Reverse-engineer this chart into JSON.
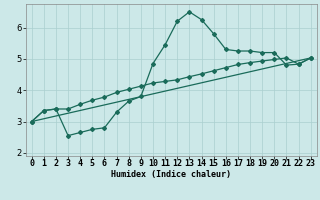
{
  "xlabel": "Humidex (Indice chaleur)",
  "bg_color": "#cce8e8",
  "grid_color": "#aacfcf",
  "line_color": "#1a6b5a",
  "xlim": [
    -0.5,
    23.5
  ],
  "ylim": [
    1.9,
    6.75
  ],
  "yticks": [
    2,
    3,
    4,
    5,
    6
  ],
  "xtick_labels": [
    "0",
    "1",
    "2",
    "3",
    "4",
    "5",
    "6",
    "7",
    "8",
    "9",
    "10",
    "11",
    "12",
    "13",
    "14",
    "15",
    "16",
    "17",
    "18",
    "19",
    "20",
    "21",
    "22",
    "23"
  ],
  "line1_x": [
    0,
    1,
    2,
    3,
    4,
    5,
    6,
    7,
    8,
    9,
    10,
    11,
    12,
    13,
    14,
    15,
    16,
    17,
    18,
    19,
    20,
    21,
    22,
    23
  ],
  "line1_y": [
    3.0,
    3.35,
    3.4,
    3.4,
    3.55,
    3.68,
    3.78,
    3.93,
    4.03,
    4.13,
    4.23,
    4.28,
    4.33,
    4.43,
    4.52,
    4.62,
    4.72,
    4.82,
    4.88,
    4.93,
    4.98,
    5.03,
    4.83,
    5.03
  ],
  "line2_x": [
    0,
    1,
    2,
    3,
    4,
    5,
    6,
    7,
    8,
    9,
    10,
    11,
    12,
    13,
    14,
    15,
    16,
    17,
    18,
    19,
    20,
    21,
    22,
    23
  ],
  "line2_y": [
    3.0,
    3.35,
    3.4,
    2.55,
    2.65,
    2.75,
    2.8,
    3.3,
    3.65,
    3.8,
    4.85,
    5.45,
    6.2,
    6.5,
    6.25,
    5.8,
    5.3,
    5.25,
    5.25,
    5.2,
    5.2,
    4.8,
    4.83,
    5.03
  ],
  "line3_x": [
    0,
    23
  ],
  "line3_y": [
    3.0,
    5.03
  ]
}
